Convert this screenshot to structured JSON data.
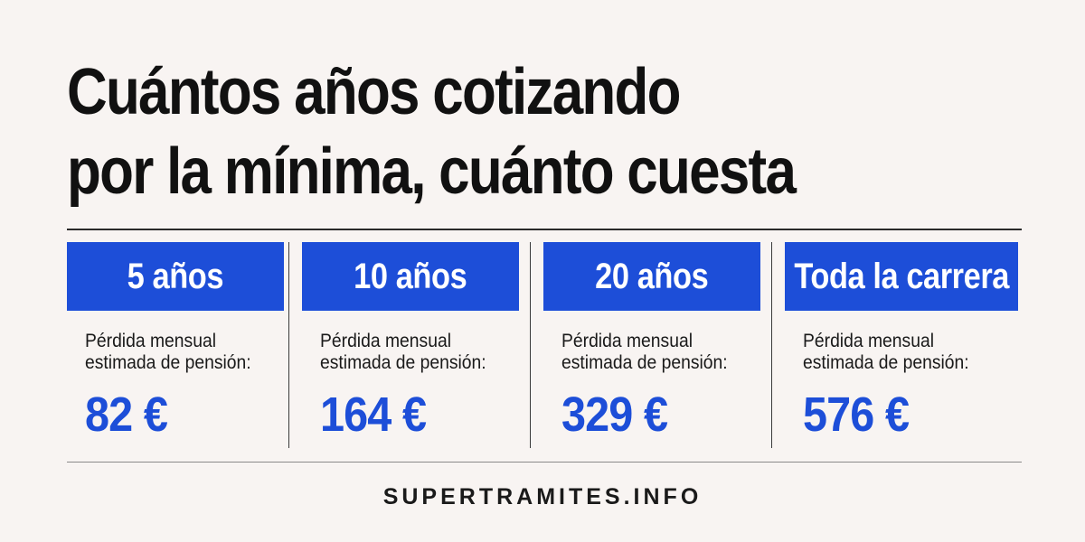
{
  "title": {
    "line1": "Cuántos años cotizando",
    "line2": "por la mínima, cuánto cuesta"
  },
  "columns": [
    {
      "label": "5 años",
      "desc_line1": "Pérdida mensual",
      "desc_line2": "estimada de pensión:",
      "value": "82 €"
    },
    {
      "label": "10 años",
      "desc_line1": "Pérdida mensual",
      "desc_line2": "estimada de pensión:",
      "value": "164 €"
    },
    {
      "label": "20 años",
      "desc_line1": "Pérdida mensual",
      "desc_line2": "estimada de pensión:",
      "value": "329 €"
    },
    {
      "label": "Toda la carrera",
      "desc_line1": "Pérdida mensual",
      "desc_line2": "estimada de pensión:",
      "value": "576 €"
    }
  ],
  "footer": {
    "brand": "SUPERTRAMITES.INFO"
  },
  "colors": {
    "accent": "#1d4ed8",
    "background": "#f8f4f2",
    "text": "#111111"
  }
}
